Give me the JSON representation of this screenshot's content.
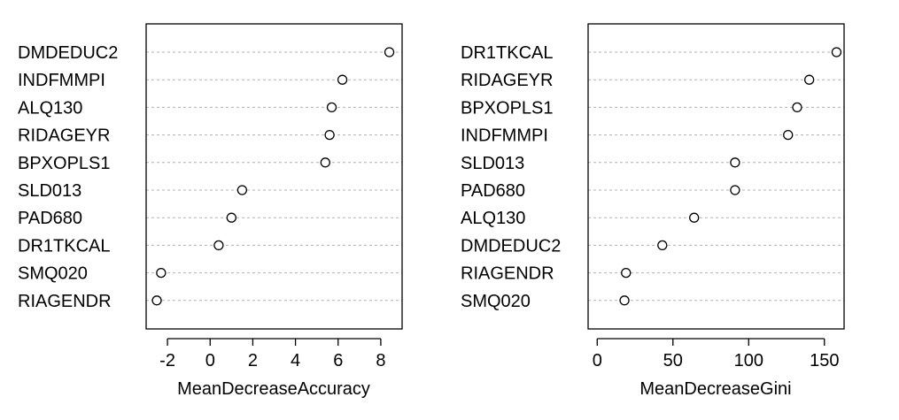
{
  "chart_data": [
    {
      "type": "scatter",
      "title": "",
      "xlabel": "MeanDecreaseAccuracy",
      "xlim": [
        -3,
        9
      ],
      "xticks": [
        "-2",
        "0",
        "2",
        "4",
        "6",
        "8"
      ],
      "xtick_values": [
        -2,
        0,
        2,
        4,
        6,
        8
      ],
      "grid": "dotted horizontal",
      "categories": [
        "DMDEDUC2",
        "INDFMMPI",
        "ALQ130",
        "RIDAGEYR",
        "BPXOPLS1",
        "SLD013",
        "PAD680",
        "DR1TKCAL",
        "SMQ020",
        "RIAGENDR"
      ],
      "values": [
        8.4,
        6.2,
        5.7,
        5.6,
        5.4,
        1.5,
        1.0,
        0.4,
        -2.3,
        -2.5
      ]
    },
    {
      "type": "scatter",
      "title": "",
      "xlabel": "MeanDecreaseGini",
      "xlim": [
        -6,
        163
      ],
      "xticks": [
        "0",
        "50",
        "100",
        "150"
      ],
      "xtick_values": [
        0,
        50,
        100,
        150
      ],
      "grid": "dotted horizontal",
      "categories": [
        "DR1TKCAL",
        "RIDAGEYR",
        "BPXOPLS1",
        "INDFMMPI",
        "SLD013",
        "PAD680",
        "ALQ130",
        "DMDEDUC2",
        "RIAGENDR",
        "SMQ020"
      ],
      "values": [
        158,
        140,
        132,
        126,
        91,
        91,
        64,
        43,
        19,
        18
      ]
    }
  ]
}
